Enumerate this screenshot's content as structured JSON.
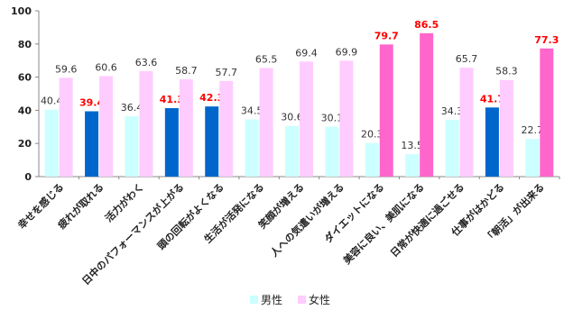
{
  "chart_data": {
    "type": "bar",
    "title": "",
    "xlabel": "",
    "ylabel": "",
    "ylim": [
      0,
      100
    ],
    "yticks": [
      0,
      20,
      40,
      60,
      80,
      100
    ],
    "grid": false,
    "legend_position": "bottom",
    "categories": [
      "幸せを感じる",
      "疲れが取れる",
      "活力がわく",
      "日中のパフォーマンスが上がる",
      "頭の回転がよくなる",
      "生活が活発になる",
      "笑顔が増える",
      "人への気遣いが増える",
      "ダイエットになる",
      "美容に良い、美肌になる",
      "日常が快適に過ごせる",
      "仕事がはかどる",
      "「朝活」が出来る"
    ],
    "series": [
      {
        "name": "男性",
        "values": [
          40.4,
          39.4,
          36.4,
          41.3,
          42.3,
          34.5,
          30.6,
          30.1,
          20.3,
          13.5,
          34.3,
          41.7,
          22.7
        ],
        "highlighted": [
          false,
          true,
          false,
          true,
          true,
          false,
          false,
          false,
          false,
          false,
          false,
          true,
          false
        ]
      },
      {
        "name": "女性",
        "values": [
          59.6,
          60.6,
          63.6,
          58.7,
          57.7,
          65.5,
          69.4,
          69.9,
          79.7,
          86.5,
          65.7,
          58.3,
          77.3
        ],
        "highlighted": [
          false,
          false,
          false,
          false,
          false,
          false,
          false,
          false,
          true,
          true,
          false,
          false,
          true
        ]
      }
    ],
    "colors": {
      "male": "#ccffff",
      "male_highlight": "#0066cc",
      "female": "#ffccff",
      "female_highlight": "#ff66cc",
      "label": "#333333",
      "label_highlight": "#ff0000",
      "axis": "#888888"
    }
  }
}
